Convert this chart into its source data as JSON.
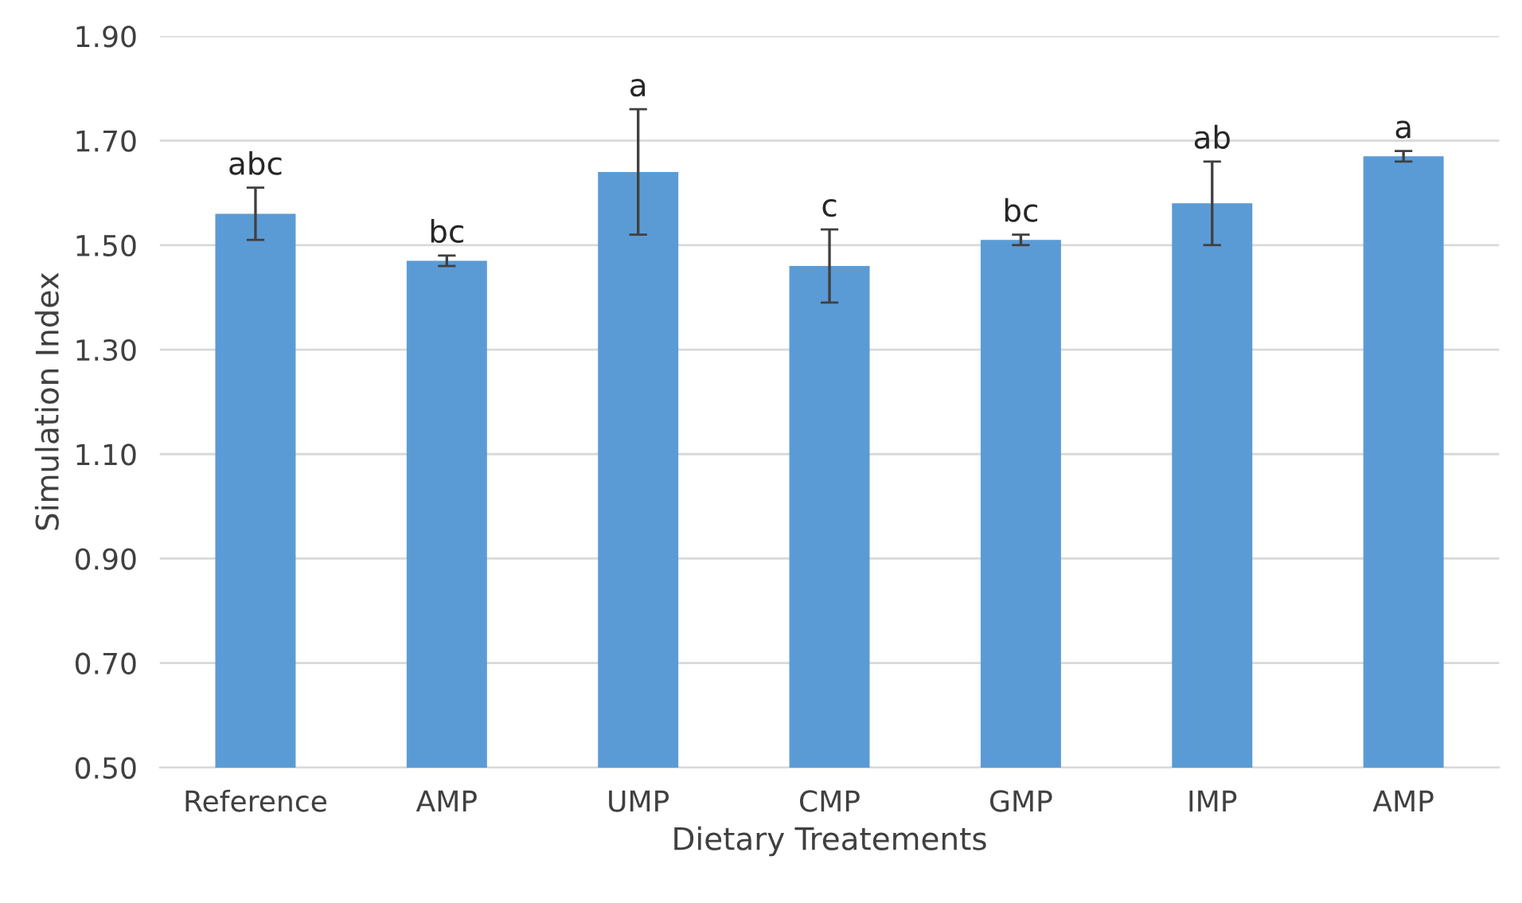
{
  "chart_data": {
    "type": "bar",
    "xlabel": "Dietary Treatements",
    "ylabel": "Simulation Index",
    "categories": [
      "Reference",
      "AMP",
      "UMP",
      "CMP",
      "GMP",
      "IMP",
      "AMP"
    ],
    "values": [
      1.56,
      1.47,
      1.64,
      1.46,
      1.51,
      1.58,
      1.67
    ],
    "errors": [
      0.05,
      0.01,
      0.12,
      0.07,
      0.01,
      0.08,
      0.01
    ],
    "color": "#5b9bd5",
    "annotations": [
      "abc",
      "bc",
      "a",
      "c",
      "bc",
      "ab",
      "a"
    ],
    "ylim": [
      0.5,
      1.9
    ],
    "yticks": [
      {
        "value": 0.5,
        "label": "0.50"
      },
      {
        "value": 0.7,
        "label": "0.70"
      },
      {
        "value": 0.9,
        "label": "0.90"
      },
      {
        "value": 1.1,
        "label": "1.10"
      },
      {
        "value": 1.3,
        "label": "1.30"
      },
      {
        "value": 1.5,
        "label": "1.50"
      },
      {
        "value": 1.7,
        "label": "1.70"
      },
      {
        "value": 1.9,
        "label": "1.90"
      }
    ],
    "grid": "y",
    "legend": false
  }
}
